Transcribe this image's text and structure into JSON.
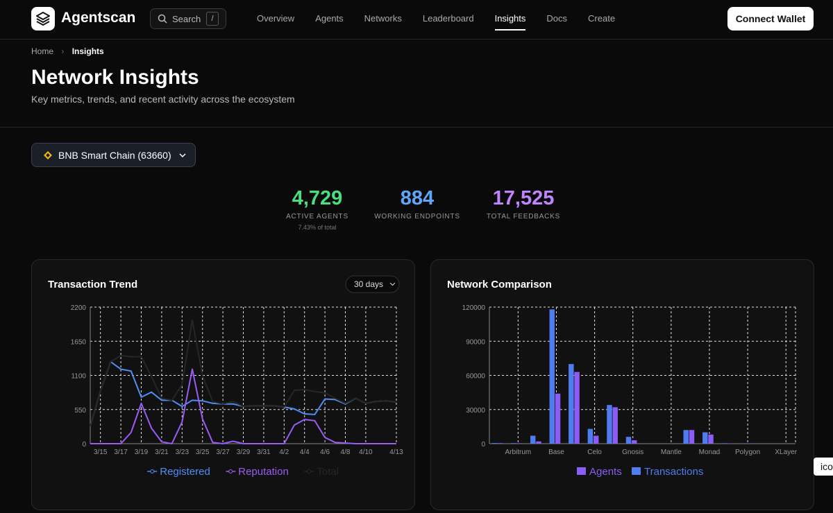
{
  "nav": {
    "brand": "Agentscan",
    "search": "Search",
    "shortcut": "/",
    "links": [
      "Overview",
      "Agents",
      "Networks",
      "Leaderboard",
      "Insights",
      "Docs",
      "Create"
    ],
    "active": 4,
    "button": "Connect Wallet"
  },
  "breadcrumb": [
    "Home",
    "Insights"
  ],
  "header": {
    "title": "Network Insights",
    "subtitle": "Key metrics, trends, and recent activity across the ecosystem"
  },
  "network_selector": "BNB Smart Chain (63660)",
  "stats": [
    {
      "value": "4,729",
      "label": "ACTIVE AGENTS",
      "note": "7.43% of total"
    },
    {
      "value": "884",
      "label": "WORKING ENDPOINTS"
    },
    {
      "value": "17,525",
      "label": "TOTAL FEEDBACKS"
    }
  ],
  "tooltip": "ico",
  "chart_data": [
    {
      "type": "line",
      "title": "Transaction Trend",
      "range_selector": "30 days",
      "categories": [
        null,
        "3/15",
        null,
        "3/17",
        null,
        "3/19",
        null,
        "3/21",
        null,
        "3/23",
        null,
        "3/25",
        null,
        "3/27",
        null,
        "3/29",
        null,
        "3/31",
        null,
        "4/2",
        null,
        "4/4",
        null,
        "4/6",
        null,
        "4/8",
        null,
        "4/10",
        null,
        null,
        "4/13"
      ],
      "ylim": [
        0,
        2200
      ],
      "yticks": [
        0,
        550,
        1100,
        1650,
        2200
      ],
      "grid": true,
      "series": [
        {
          "name": "Registered",
          "color": "#4f8ef7",
          "values": [
            280,
            850,
            1320,
            1200,
            1170,
            750,
            830,
            700,
            700,
            600,
            700,
            690,
            650,
            640,
            640,
            600,
            610,
            610,
            610,
            590,
            560,
            480,
            470,
            720,
            710,
            640,
            730,
            650,
            680,
            690,
            670
          ]
        },
        {
          "name": "Reputation",
          "color": "#9b5cf6",
          "values": [
            0,
            0,
            0,
            0,
            180,
            650,
            250,
            30,
            0,
            350,
            1200,
            400,
            20,
            0,
            40,
            0,
            0,
            0,
            0,
            0,
            300,
            390,
            370,
            100,
            20,
            10,
            0,
            0,
            0,
            0,
            0
          ]
        },
        {
          "name": "Total",
          "color": "#262626",
          "values": [
            280,
            850,
            1320,
            1420,
            1400,
            1400,
            1080,
            730,
            700,
            950,
            1990,
            1100,
            680,
            640,
            680,
            600,
            610,
            610,
            610,
            590,
            860,
            870,
            840,
            820,
            730,
            650,
            730,
            650,
            680,
            690,
            670
          ]
        }
      ]
    },
    {
      "type": "bar",
      "title": "Network Comparison",
      "categories": [
        null,
        "Arbitrum",
        null,
        "Base",
        null,
        "Celo",
        null,
        "Gnosis",
        null,
        "Mantle",
        null,
        "Monad",
        null,
        "Polygon",
        null,
        "XLayer"
      ],
      "ylim": [
        0,
        120000
      ],
      "yticks": [
        0,
        30000,
        60000,
        90000,
        120000
      ],
      "grid": true,
      "series": [
        {
          "name": "Agents",
          "color": "#8b5cf6",
          "values": [
            500,
            400,
            2000,
            44000,
            63000,
            7000,
            32000,
            3000,
            0,
            0,
            12000,
            8000,
            300,
            200,
            0,
            0
          ]
        },
        {
          "name": "Transactions",
          "color": "#4f7df0",
          "values": [
            600,
            500,
            7000,
            118000,
            70000,
            13000,
            34000,
            6000,
            0,
            0,
            12000,
            10000,
            400,
            300,
            100,
            0
          ]
        }
      ]
    }
  ]
}
